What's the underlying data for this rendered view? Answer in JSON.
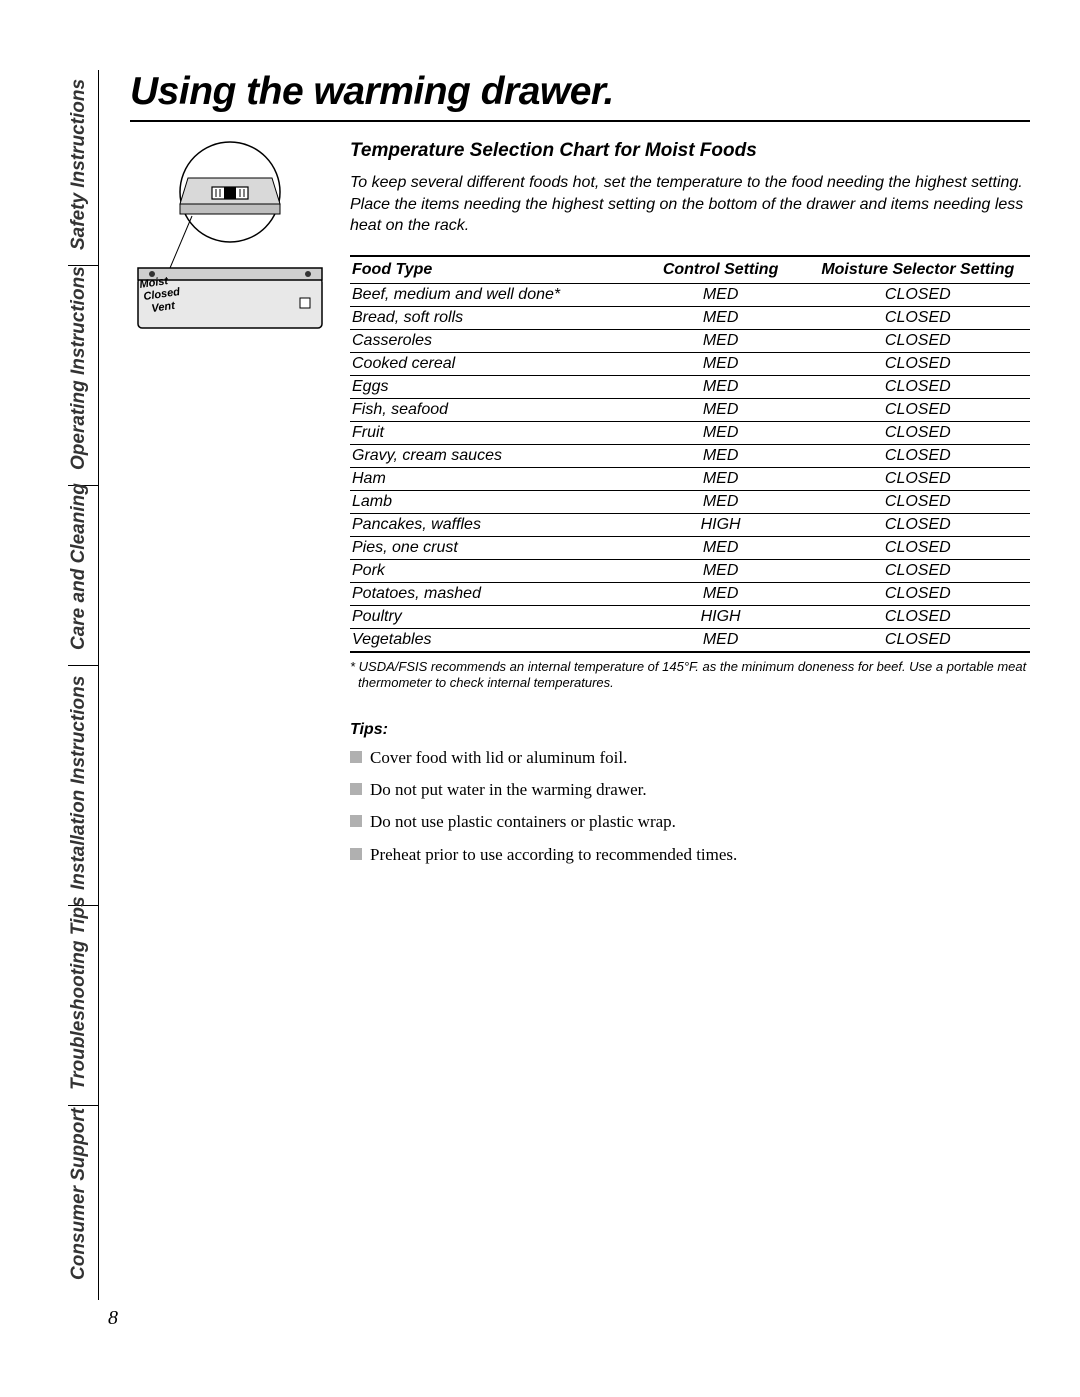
{
  "page_number": "8",
  "sidebar": {
    "tabs": [
      "Safety Instructions",
      "Operating Instructions",
      "Care and Cleaning",
      "Installation Instructions",
      "Troubleshooting Tips",
      "Consumer Support"
    ]
  },
  "title": "Using the warming drawer.",
  "illustration": {
    "labels": [
      "Moist",
      "Closed",
      "Vent"
    ]
  },
  "section": {
    "heading": "Temperature Selection Chart for Moist Foods",
    "intro": "To keep several different foods hot, set the temperature to the food needing the highest setting. Place the items needing the highest setting on the bottom of the drawer and items needing less heat on the rack.",
    "table": {
      "columns": [
        "Food Type",
        "Control Setting",
        "Moisture Selector Setting"
      ],
      "rows": [
        [
          "Beef, medium and well done*",
          "MED",
          "CLOSED"
        ],
        [
          "Bread, soft rolls",
          "MED",
          "CLOSED"
        ],
        [
          "Casseroles",
          "MED",
          "CLOSED"
        ],
        [
          "Cooked cereal",
          "MED",
          "CLOSED"
        ],
        [
          "Eggs",
          "MED",
          "CLOSED"
        ],
        [
          "Fish, seafood",
          "MED",
          "CLOSED"
        ],
        [
          "Fruit",
          "MED",
          "CLOSED"
        ],
        [
          "Gravy, cream sauces",
          "MED",
          "CLOSED"
        ],
        [
          "Ham",
          "MED",
          "CLOSED"
        ],
        [
          "Lamb",
          "MED",
          "CLOSED"
        ],
        [
          "Pancakes, waffles",
          "HIGH",
          "CLOSED"
        ],
        [
          "Pies, one crust",
          "MED",
          "CLOSED"
        ],
        [
          "Pork",
          "MED",
          "CLOSED"
        ],
        [
          "Potatoes, mashed",
          "MED",
          "CLOSED"
        ],
        [
          "Poultry",
          "HIGH",
          "CLOSED"
        ],
        [
          "Vegetables",
          "MED",
          "CLOSED"
        ]
      ]
    },
    "footnote": "* USDA/FSIS recommends an internal temperature of 145°F. as the minimum doneness for beef. Use a portable meat thermometer to check internal temperatures.",
    "tips_heading": "Tips:",
    "tips": [
      "Cover food with lid or aluminum foil.",
      "Do not put water in the warming drawer.",
      "Do not use plastic containers or plastic wrap.",
      "Preheat prior to use according to recommended times."
    ]
  }
}
